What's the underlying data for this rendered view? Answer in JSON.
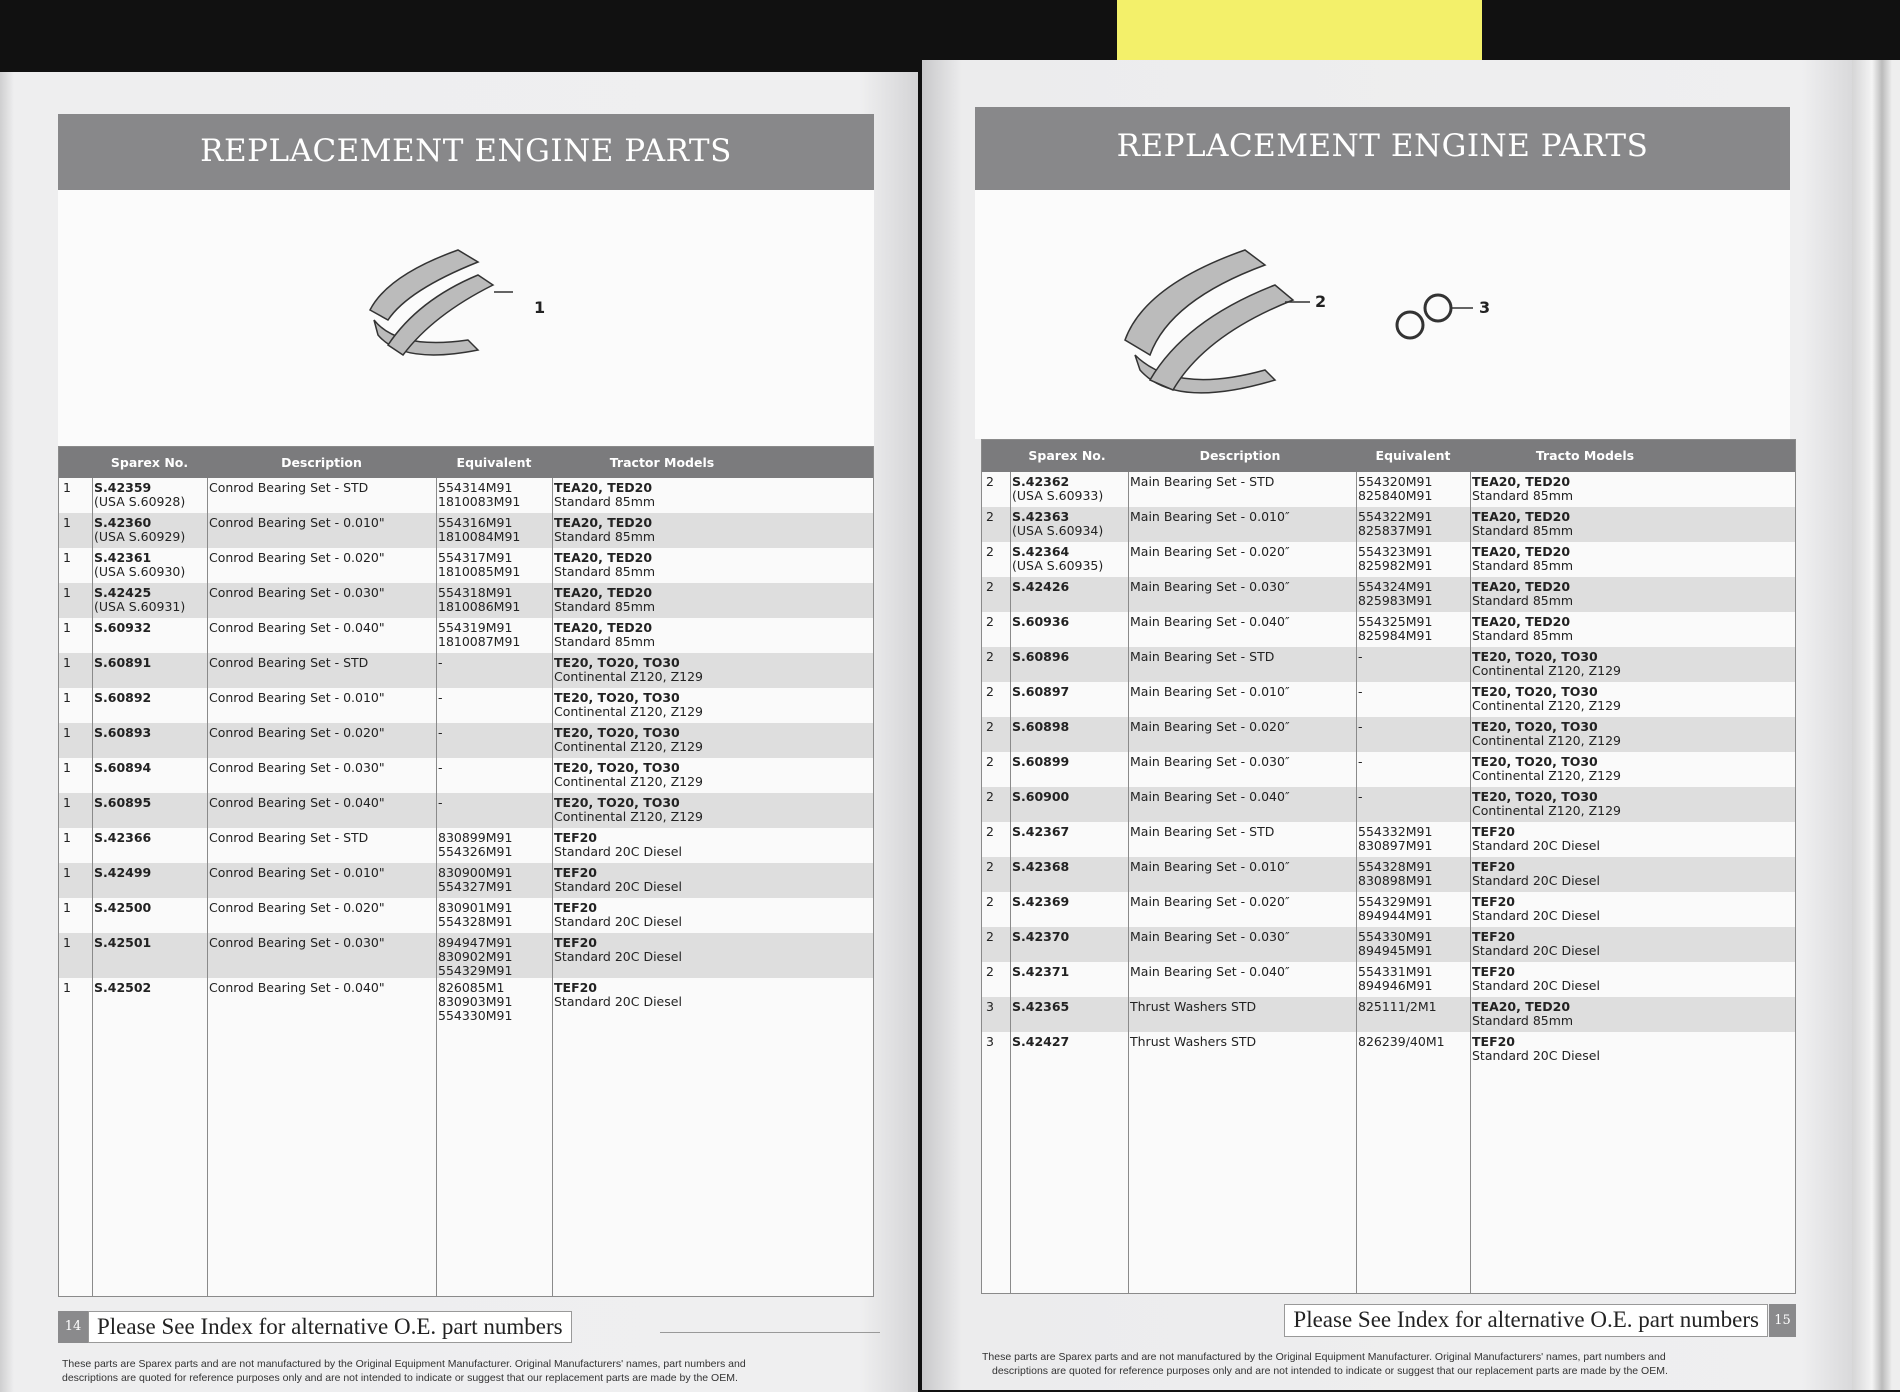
{
  "pages": [
    {
      "title": "REPLACEMENT ENGINE PARTS",
      "callouts": [
        "1"
      ],
      "columns": [
        "Sparex No.",
        "Description",
        "Equivalent",
        "Tractor Models"
      ],
      "page_number": "14",
      "footer": "Please See Index for alternative O.E. part numbers",
      "disclaimer": [
        "These parts are Sparex parts and are not manufactured by the Original Equipment Manufacturer. Original Manufacturers' names, part numbers and",
        "descriptions are quoted for reference purposes only and are not intended to indicate or suggest that our replacement parts are made by the OEM."
      ],
      "rows": [
        {
          "ref": "1",
          "part": "S.42359",
          "usa": "(USA S.60928)",
          "desc": "Conrod Bearing Set - STD",
          "equiv": [
            "554314M91",
            "1810083M91"
          ],
          "models": "TEA20, TED20",
          "sub": "Standard 85mm"
        },
        {
          "ref": "1",
          "part": "S.42360",
          "usa": "(USA S.60929)",
          "desc": "Conrod Bearing Set - 0.010\"",
          "equiv": [
            "554316M91",
            "1810084M91"
          ],
          "models": "TEA20, TED20",
          "sub": "Standard 85mm"
        },
        {
          "ref": "1",
          "part": "S.42361",
          "usa": "(USA S.60930)",
          "desc": "Conrod Bearing Set - 0.020\"",
          "equiv": [
            "554317M91",
            "1810085M91"
          ],
          "models": "TEA20, TED20",
          "sub": "Standard 85mm"
        },
        {
          "ref": "1",
          "part": "S.42425",
          "usa": "(USA S.60931)",
          "desc": "Conrod Bearing Set - 0.030\"",
          "equiv": [
            "554318M91",
            "1810086M91"
          ],
          "models": "TEA20, TED20",
          "sub": "Standard 85mm"
        },
        {
          "ref": "1",
          "part": "S.60932",
          "usa": "",
          "desc": "Conrod Bearing Set - 0.040\"",
          "equiv": [
            "554319M91",
            "1810087M91"
          ],
          "models": "TEA20, TED20",
          "sub": "Standard 85mm"
        },
        {
          "ref": "1",
          "part": "S.60891",
          "usa": "",
          "desc": "Conrod Bearing Set - STD",
          "equiv": [
            "-"
          ],
          "models": "TE20, TO20, TO30",
          "sub": "Continental Z120, Z129"
        },
        {
          "ref": "1",
          "part": "S.60892",
          "usa": "",
          "desc": "Conrod Bearing Set - 0.010\"",
          "equiv": [
            "-"
          ],
          "models": "TE20, TO20, TO30",
          "sub": "Continental Z120, Z129"
        },
        {
          "ref": "1",
          "part": "S.60893",
          "usa": "",
          "desc": "Conrod Bearing Set - 0.020\"",
          "equiv": [
            "-"
          ],
          "models": "TE20, TO20, TO30",
          "sub": "Continental Z120, Z129"
        },
        {
          "ref": "1",
          "part": "S.60894",
          "usa": "",
          "desc": "Conrod Bearing Set - 0.030\"",
          "equiv": [
            "-"
          ],
          "models": "TE20, TO20, TO30",
          "sub": "Continental Z120, Z129"
        },
        {
          "ref": "1",
          "part": "S.60895",
          "usa": "",
          "desc": "Conrod Bearing Set - 0.040\"",
          "equiv": [
            "-"
          ],
          "models": "TE20, TO20, TO30",
          "sub": "Continental Z120, Z129"
        },
        {
          "ref": "1",
          "part": "S.42366",
          "usa": "",
          "desc": "Conrod Bearing Set - STD",
          "equiv": [
            "830899M91",
            "554326M91"
          ],
          "models": "TEF20",
          "sub": "Standard 20C Diesel"
        },
        {
          "ref": "1",
          "part": "S.42499",
          "usa": "",
          "desc": "Conrod Bearing Set - 0.010\"",
          "equiv": [
            "830900M91",
            "554327M91"
          ],
          "models": "TEF20",
          "sub": "Standard 20C Diesel"
        },
        {
          "ref": "1",
          "part": "S.42500",
          "usa": "",
          "desc": "Conrod Bearing Set - 0.020\"",
          "equiv": [
            "830901M91",
            "554328M91"
          ],
          "models": "TEF20",
          "sub": "Standard 20C Diesel"
        },
        {
          "ref": "1",
          "part": "S.42501",
          "usa": "",
          "desc": "Conrod Bearing Set - 0.030\"",
          "equiv": [
            "894947M91",
            "830902M91",
            "554329M91"
          ],
          "models": "TEF20",
          "sub": "Standard 20C Diesel"
        },
        {
          "ref": "1",
          "part": "S.42502",
          "usa": "",
          "desc": "Conrod Bearing Set - 0.040\"",
          "equiv": [
            "826085M1",
            "830903M91",
            "554330M91"
          ],
          "models": "TEF20",
          "sub": "Standard 20C Diesel"
        }
      ]
    },
    {
      "title": "REPLACEMENT ENGINE PARTS",
      "callouts": [
        "2",
        "3"
      ],
      "columns": [
        "Sparex No.",
        "Description",
        "Equivalent",
        "Tracto Models"
      ],
      "page_number": "15",
      "footer": "Please See Index for alternative O.E. part numbers",
      "disclaimer": [
        "These parts are Sparex parts and are not manufactured by the Original Equipment Manufacturer. Original Manufacturers' names, part numbers and",
        "descriptions are quoted for reference purposes only and are not intended to indicate or suggest that our replacement parts are made by the OEM."
      ],
      "rows": [
        {
          "ref": "2",
          "part": "S.42362",
          "usa": "(USA S.60933)",
          "desc": "Main Bearing Set - STD",
          "equiv": [
            "554320M91",
            "825840M91"
          ],
          "models": "TEA20, TED20",
          "sub": "Standard 85mm"
        },
        {
          "ref": "2",
          "part": "S.42363",
          "usa": "(USA S.60934)",
          "desc": "Main Bearing Set - 0.010″",
          "equiv": [
            "554322M91",
            "825837M91"
          ],
          "models": "TEA20, TED20",
          "sub": "Standard 85mm"
        },
        {
          "ref": "2",
          "part": "S.42364",
          "usa": "(USA S.60935)",
          "desc": "Main Bearing Set - 0.020″",
          "equiv": [
            "554323M91",
            "825982M91"
          ],
          "models": "TEA20, TED20",
          "sub": "Standard 85mm"
        },
        {
          "ref": "2",
          "part": "S.42426",
          "usa": "",
          "desc": "Main Bearing Set - 0.030″",
          "equiv": [
            "554324M91",
            "825983M91"
          ],
          "models": "TEA20, TED20",
          "sub": "Standard 85mm"
        },
        {
          "ref": "2",
          "part": "S.60936",
          "usa": "",
          "desc": "Main Bearing Set - 0.040″",
          "equiv": [
            "554325M91",
            "825984M91"
          ],
          "models": "TEA20, TED20",
          "sub": "Standard 85mm"
        },
        {
          "ref": "2",
          "part": "S.60896",
          "usa": "",
          "desc": "Main Bearing Set - STD",
          "equiv": [
            "-"
          ],
          "models": "TE20, TO20, TO30",
          "sub": "Continental Z120, Z129"
        },
        {
          "ref": "2",
          "part": "S.60897",
          "usa": "",
          "desc": "Main Bearing Set - 0.010″",
          "equiv": [
            "-"
          ],
          "models": "TE20, TO20, TO30",
          "sub": "Continental Z120, Z129"
        },
        {
          "ref": "2",
          "part": "S.60898",
          "usa": "",
          "desc": "Main Bearing Set - 0.020″",
          "equiv": [
            "-"
          ],
          "models": "TE20, TO20, TO30",
          "sub": "Continental Z120, Z129"
        },
        {
          "ref": "2",
          "part": "S.60899",
          "usa": "",
          "desc": "Main Bearing Set - 0.030″",
          "equiv": [
            "-"
          ],
          "models": "TE20, TO20, TO30",
          "sub": "Continental Z120, Z129"
        },
        {
          "ref": "2",
          "part": "S.60900",
          "usa": "",
          "desc": "Main Bearing Set - 0.040″",
          "equiv": [
            "-"
          ],
          "models": "TE20, TO20, TO30",
          "sub": "Continental Z120, Z129"
        },
        {
          "ref": "2",
          "part": "S.42367",
          "usa": "",
          "desc": "Main Bearing Set - STD",
          "equiv": [
            "554332M91",
            "830897M91"
          ],
          "models": "TEF20",
          "sub": "Standard 20C Diesel"
        },
        {
          "ref": "2",
          "part": "S.42368",
          "usa": "",
          "desc": "Main Bearing Set - 0.010″",
          "equiv": [
            "554328M91",
            "830898M91"
          ],
          "models": "TEF20",
          "sub": "Standard 20C Diesel"
        },
        {
          "ref": "2",
          "part": "S.42369",
          "usa": "",
          "desc": "Main Bearing Set - 0.020″",
          "equiv": [
            "554329M91",
            "894944M91"
          ],
          "models": "TEF20",
          "sub": "Standard 20C Diesel"
        },
        {
          "ref": "2",
          "part": "S.42370",
          "usa": "",
          "desc": "Main Bearing Set - 0.030″",
          "equiv": [
            "554330M91",
            "894945M91"
          ],
          "models": "TEF20",
          "sub": "Standard 20C Diesel"
        },
        {
          "ref": "2",
          "part": "S.42371",
          "usa": "",
          "desc": "Main Bearing Set - 0.040″",
          "equiv": [
            "554331M91",
            "894946M91"
          ],
          "models": "TEF20",
          "sub": "Standard 20C Diesel"
        },
        {
          "ref": "3",
          "part": "S.42365",
          "usa": "",
          "desc": "Thrust Washers STD",
          "equiv": [
            "825111/2M1"
          ],
          "models": "TEA20, TED20",
          "sub": "Standard 85mm"
        },
        {
          "ref": "3",
          "part": "S.42427",
          "usa": "",
          "desc": "Thrust Washers STD",
          "equiv": [
            "826239/40M1"
          ],
          "models": "TEF20",
          "sub": "Standard 20C Diesel"
        }
      ]
    }
  ]
}
